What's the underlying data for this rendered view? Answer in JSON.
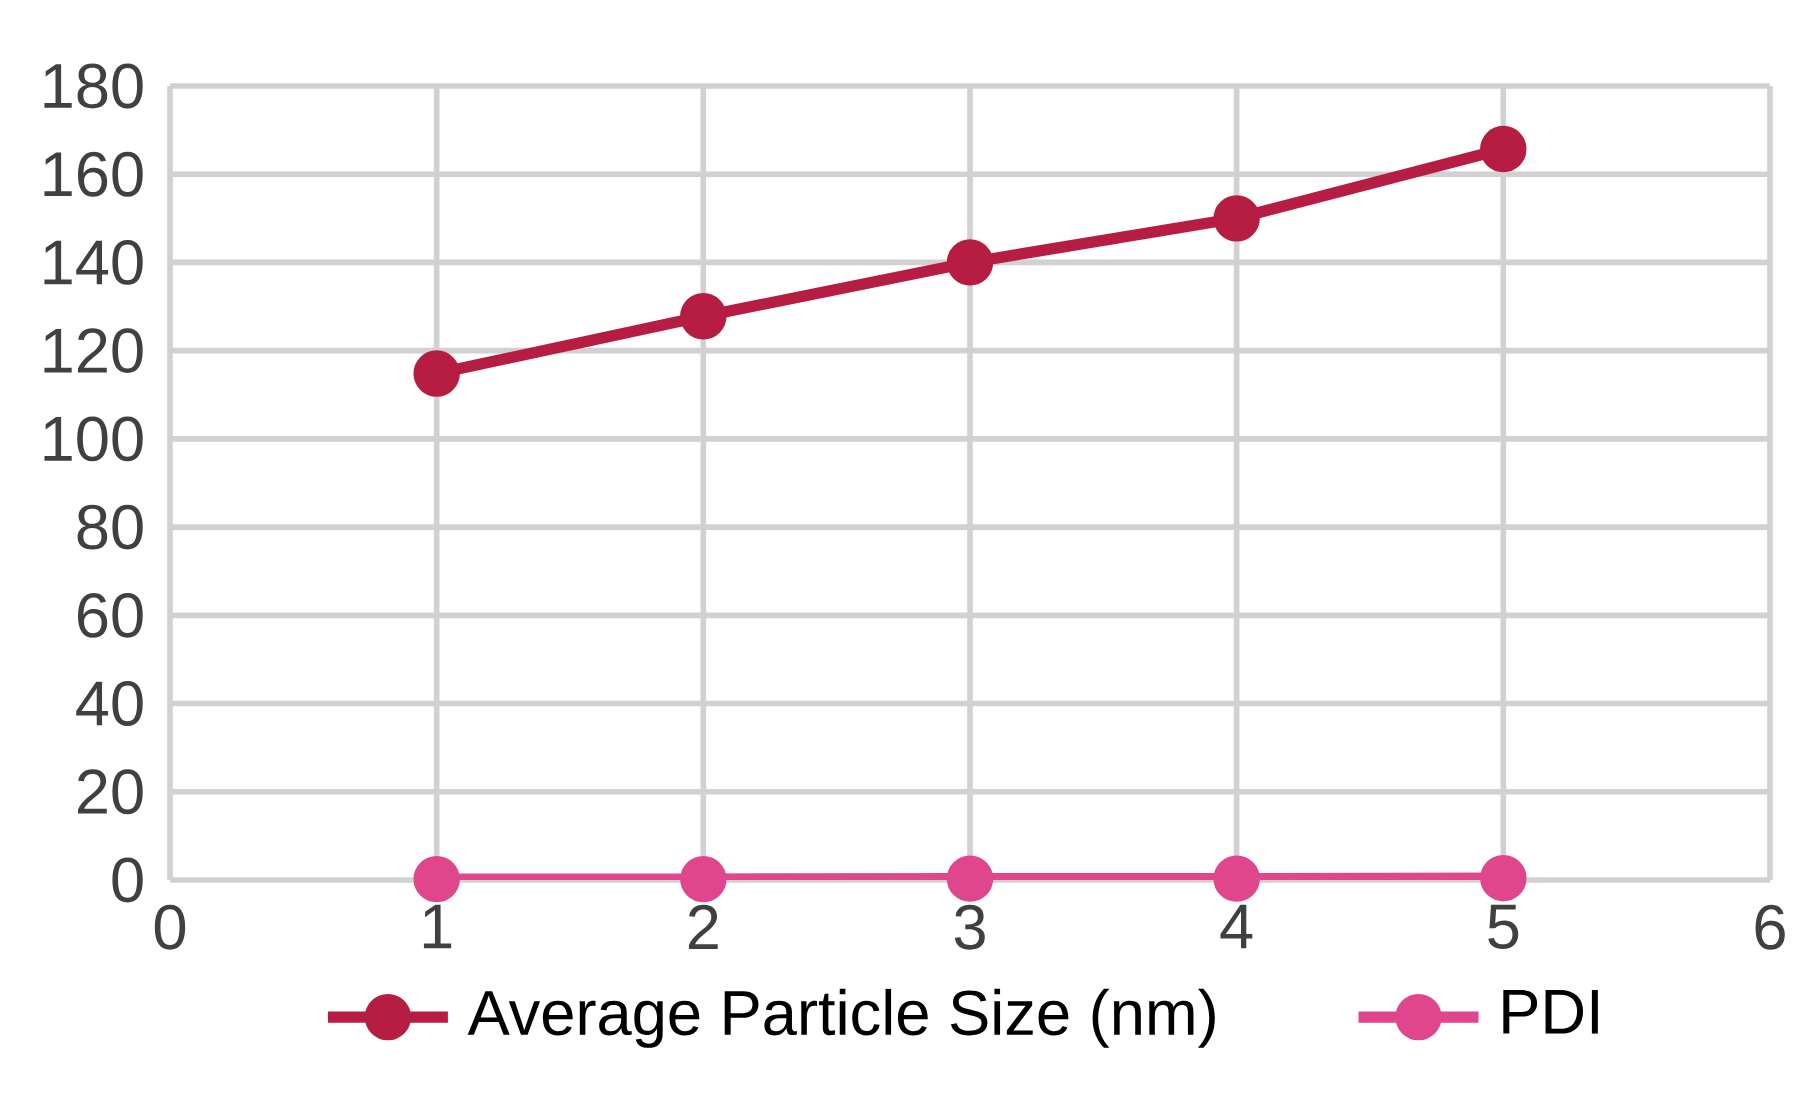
{
  "chart_data": {
    "type": "line",
    "xlim": [
      0,
      6
    ],
    "xticks": [
      0,
      1,
      2,
      3,
      4,
      5,
      6
    ],
    "ylim": [
      0,
      180
    ],
    "yticks": [
      0,
      20,
      40,
      60,
      80,
      100,
      120,
      140,
      160,
      180
    ],
    "grid": true,
    "legend": "bottom",
    "marker": "circle",
    "line_style": "solid",
    "series": [
      {
        "name": "Average Particle Size (nm)",
        "color": "#b71c42",
        "x": [
          1,
          2,
          3,
          4,
          5
        ],
        "values": [
          114.8,
          127.8,
          140,
          150,
          165.7
        ]
      },
      {
        "name": "PDI",
        "color": "#e0468e",
        "x": [
          1,
          2,
          3,
          4,
          5
        ],
        "values": [
          0.2,
          0.2,
          0.3,
          0.3,
          0.4
        ]
      }
    ]
  }
}
